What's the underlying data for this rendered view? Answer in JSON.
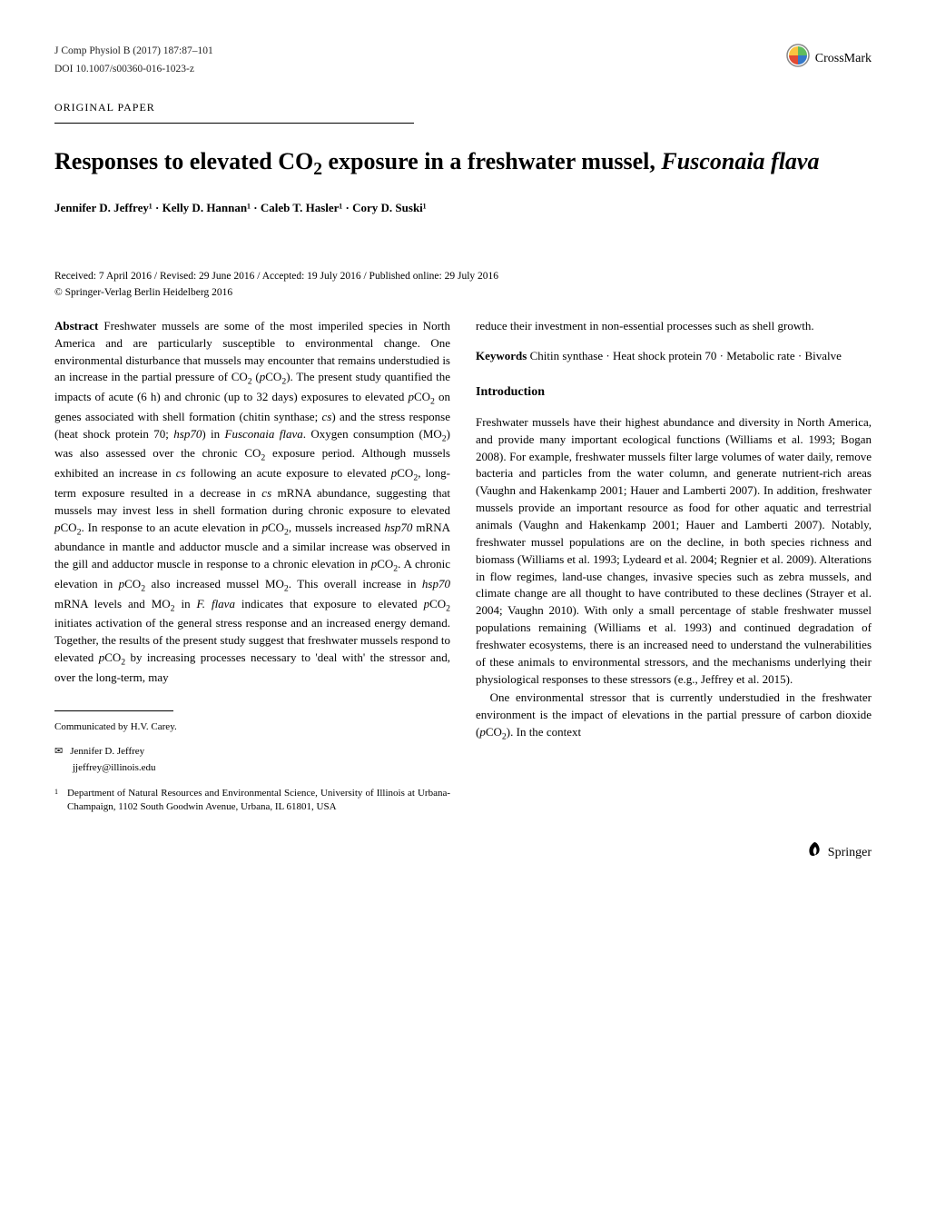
{
  "journal_line": "J Comp Physiol B (2017) 187:87–101",
  "doi_line": "DOI 10.1007/s00360-016-1023-z",
  "crossmark_label": "CrossMark",
  "crossmark_colors": {
    "top": "#f9c440",
    "right": "#5fbc5d",
    "bottom": "#3578c8",
    "left": "#e24a33"
  },
  "paper_type": "ORIGINAL PAPER",
  "title_pre": "Responses to elevated CO",
  "title_sub": "2",
  "title_post": " exposure in a freshwater mussel, ",
  "title_species": "Fusconaia flava",
  "authors": "Jennifer D. Jeffrey¹ · Kelly D. Hannan¹ · Caleb T. Hasler¹ · Cory D. Suski¹",
  "dates": "Received: 7 April 2016 / Revised: 29 June 2016 / Accepted: 19 July 2016 / Published online: 29 July 2016",
  "copyright": "© Springer-Verlag Berlin Heidelberg 2016",
  "abstract_label": "Abstract",
  "abstract_html": "Freshwater mussels are some of the most imperiled species in North America and are particularly susceptible to environmental change. One environmental disturbance that mussels may encounter that remains understudied is an increase in the partial pressure of CO<sub>2</sub> (<em>p</em>CO<sub>2</sub>). The present study quantified the impacts of acute (6 h) and chronic (up to 32 days) exposures to elevated <em>p</em>CO<sub>2</sub> on genes associated with shell formation (chitin synthase; <em>cs</em>) and the stress response (heat shock protein 70; <em>hsp70</em>) in <em>Fusconaia flava</em>. Oxygen consumption (MO<sub>2</sub>) was also assessed over the chronic CO<sub>2</sub> exposure period. Although mussels exhibited an increase in <em>cs</em> following an acute exposure to elevated <em>p</em>CO<sub>2</sub>, long-term exposure resulted in a decrease in <em>cs</em> mRNA abundance, suggesting that mussels may invest less in shell formation during chronic exposure to elevated <em>p</em>CO<sub>2</sub>. In response to an acute elevation in <em>p</em>CO<sub>2</sub>, mussels increased <em>hsp70</em> mRNA abundance in mantle and adductor muscle and a similar increase was observed in the gill and adductor muscle in response to a chronic elevation in <em>p</em>CO<sub>2</sub>. A chronic elevation in <em>p</em>CO<sub>2</sub> also increased mussel MO<sub>2</sub>. This overall increase in <em>hsp70</em> mRNA levels and MO<sub>2</sub> in <em>F. flava</em> indicates that exposure to elevated <em>p</em>CO<sub>2</sub> initiates activation of the general stress response and an increased energy demand. Together, the results of the present study suggest that freshwater mussels respond to elevated <em>p</em>CO<sub>2</sub> by increasing processes necessary to 'deal with' the stressor and, over the long-term, may",
  "right_top_html": "reduce their investment in non-essential processes such as shell growth.",
  "kw_label": "Keywords",
  "keywords": "Chitin synthase · Heat shock protein 70 · Metabolic rate · Bivalve",
  "intro_head": "Introduction",
  "intro_html": "Freshwater mussels have their highest abundance and diversity in North America, and provide many important ecological functions (Williams et al. 1993; Bogan 2008). For example, freshwater mussels filter large volumes of water daily, remove bacteria and particles from the water column, and generate nutrient-rich areas (Vaughn and Hakenkamp 2001; Hauer and Lamberti 2007). In addition, freshwater mussels provide an important resource as food for other aquatic and terrestrial animals (Vaughn and Hakenkamp 2001; Hauer and Lamberti 2007). Notably, freshwater mussel populations are on the decline, in both species richness and biomass (Williams et al. 1993; Lydeard et al. 2004; Regnier et al. 2009). Alterations in flow regimes, land-use changes, invasive species such as zebra mussels, and climate change are all thought to have contributed to these declines (Strayer et al. 2004; Vaughn 2010). With only a small percentage of stable freshwater mussel populations remaining (Williams et al. 1993) and continued degradation of freshwater ecosystems, there is an increased need to understand the vulnerabilities of these animals to environmental stressors, and the mechanisms underlying their physiological responses to these stressors (e.g., Jeffrey et al. 2015).",
  "intro_p2_html": "One environmental stressor that is currently understudied in the freshwater environment is the impact of elevations in the partial pressure of carbon dioxide (<em>p</em>CO<sub>2</sub>). In the context",
  "communicated": "Communicated by H.V. Carey.",
  "corr_name": "Jennifer D. Jeffrey",
  "corr_email": "jjeffrey@illinois.edu",
  "affil_num": "1",
  "affiliation": "Department of Natural Resources and Environmental Science, University of Illinois at Urbana-Champaign, 1102 South Goodwin Avenue, Urbana, IL 61801, USA",
  "springer": "Springer"
}
